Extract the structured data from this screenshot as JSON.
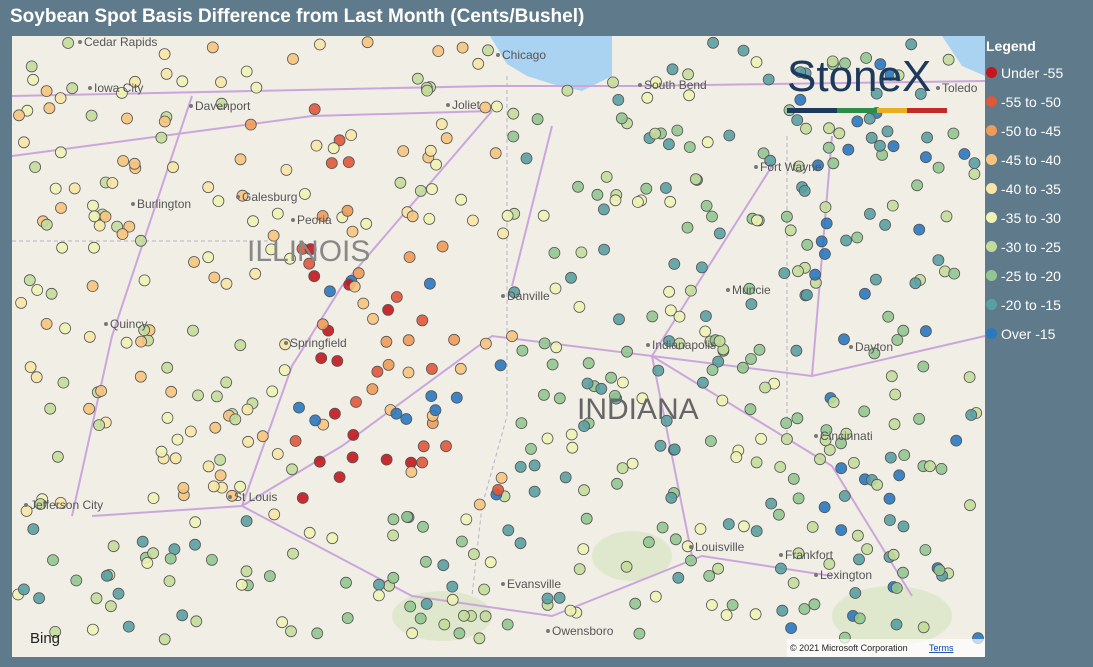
{
  "header": {
    "title": "Soybean Spot Basis Difference from Last Month (Cents/Bushel)"
  },
  "legend": {
    "title": "Legend",
    "items": [
      {
        "label": "Under -55",
        "color": "#c4161c"
      },
      {
        "label": "-55 to -50",
        "color": "#e0573a"
      },
      {
        "label": "-50 to -45",
        "color": "#ee9a58"
      },
      {
        "label": "-45 to -40",
        "color": "#f6c47e"
      },
      {
        "label": "-40 to -35",
        "color": "#f7e6a6"
      },
      {
        "label": "-35 to -30",
        "color": "#eef2b4"
      },
      {
        "label": "-30 to -25",
        "color": "#c3dc9a"
      },
      {
        "label": "-25 to -20",
        "color": "#92c690"
      },
      {
        "label": "-20 to -15",
        "color": "#5a9fa2"
      },
      {
        "label": "Over -15",
        "color": "#2a78c0"
      }
    ]
  },
  "map": {
    "states": [
      "ILLINOIS",
      "INDIANA"
    ],
    "places": [
      "Cedar Rapids",
      "Iowa City",
      "Davenport",
      "Joliet",
      "Chicago",
      "South Bend",
      "Galesburg",
      "Burlington",
      "Peoria",
      "Fort Wayne",
      "Muncie",
      "Danville",
      "Quincy",
      "Springfield",
      "Indianapolis",
      "Dayton",
      "Cincinnati",
      "St Louis",
      "Jefferson City",
      "Louisville",
      "Frankfort",
      "Lexington",
      "Evansville",
      "Owensboro",
      "Toledo"
    ],
    "logo": "StoneX",
    "provider": "Bing",
    "attribution": "© 2021 Microsoft Corporation",
    "terms": "Terms"
  }
}
